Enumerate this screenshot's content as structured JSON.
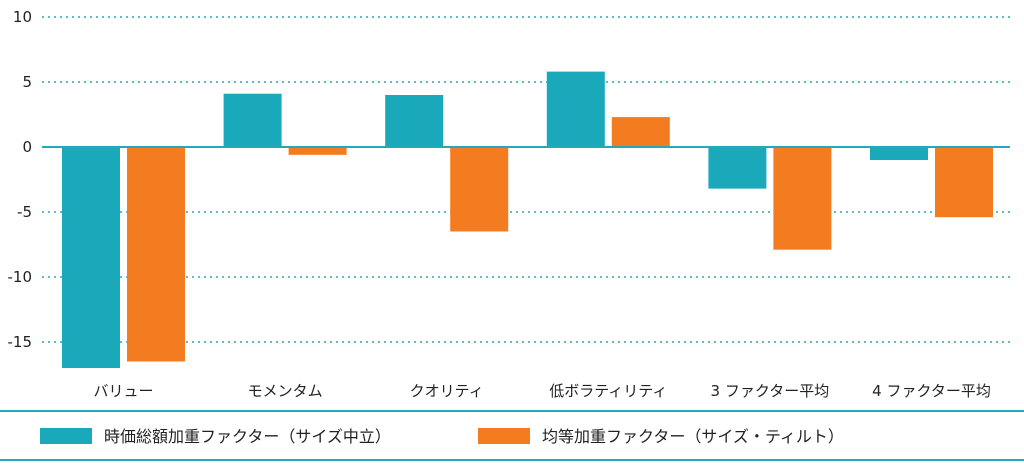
{
  "chart_data": {
    "type": "bar",
    "title": "",
    "xlabel": "",
    "ylabel": "",
    "ylim": [
      -17,
      10
    ],
    "yticks": [
      10,
      5,
      0,
      -5,
      -10,
      -15
    ],
    "ytick_labels": [
      "10",
      "5",
      "0",
      "-5",
      "-10",
      "-15"
    ],
    "grid": true,
    "legend_position": "bottom",
    "categories": [
      "バリュー",
      "モメンタム",
      "クオリティ",
      "低ボラティリティ",
      "3 ファクター平均",
      "4 ファクター平均"
    ],
    "series": [
      {
        "name": "時価総額加重ファクター（サイズ中立）",
        "color": "#19a9bb",
        "values": [
          -17.0,
          4.1,
          4.0,
          5.8,
          -3.2,
          -1.0
        ]
      },
      {
        "name": "均等加重ファクター（サイズ・ティルト）",
        "color": "#f47c20",
        "values": [
          -16.5,
          -0.6,
          -6.5,
          2.3,
          -7.9,
          -5.4
        ]
      }
    ],
    "colors": {
      "grid": "#29a7b8",
      "axis": "#29a7b8",
      "legend_rule": "#29a7b8"
    }
  }
}
